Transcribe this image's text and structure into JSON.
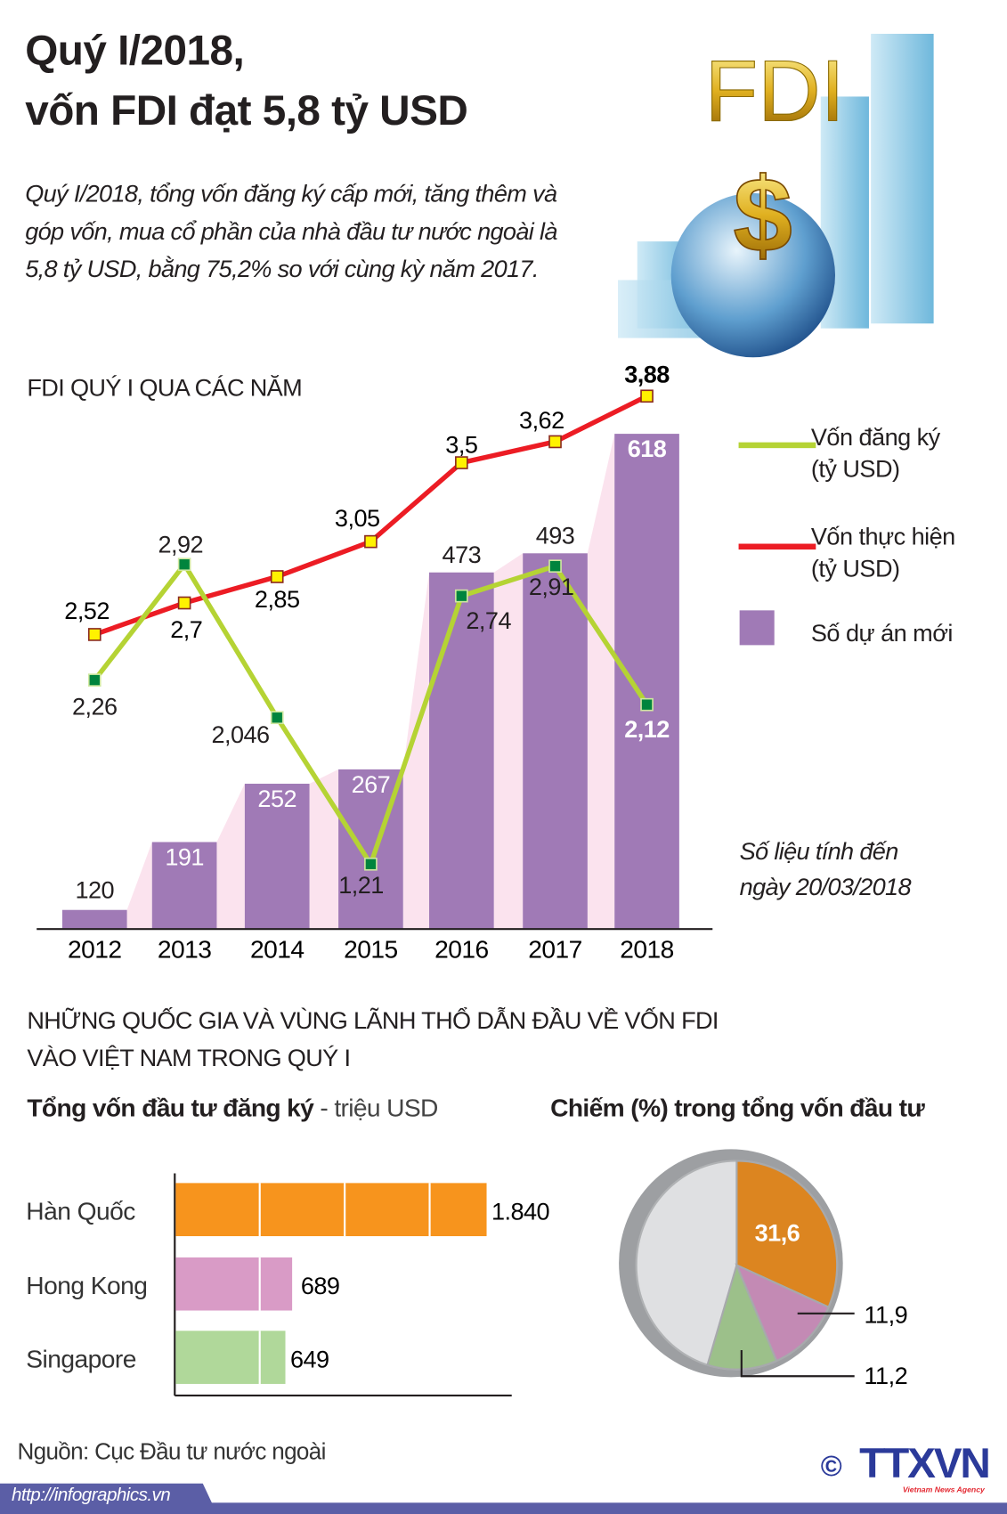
{
  "header": {
    "title_line1": "Quý I/2018,",
    "title_line2": "vốn FDI đạt 5,8 tỷ USD",
    "lead": "Quý I/2018, tổng vốn đăng ký cấp mới, tăng thêm và góp vốn, mua cổ phần của nhà đầu tư nước ngoài là 5,8 tỷ USD, bằng 75,2% so với cùng kỳ năm 2017.",
    "illustration_text": "FDI",
    "illustration_symbol": "$"
  },
  "chart_data": [
    {
      "type": "bar+line",
      "title": "FDI QUÝ I QUA CÁC NĂM",
      "categories": [
        "2012",
        "2013",
        "2014",
        "2015",
        "2016",
        "2017",
        "2018"
      ],
      "series": [
        {
          "name": "Số dự án mới",
          "kind": "bar",
          "color": "#a07ab6",
          "values": [
            120,
            191,
            252,
            267,
            473,
            493,
            618
          ],
          "labels": [
            "120",
            "191",
            "252",
            "267",
            "473",
            "493",
            "618"
          ]
        },
        {
          "name": "Vốn đăng ký (tỷ USD)",
          "kind": "line",
          "color": "#b5d334",
          "values": [
            2.26,
            2.92,
            2.046,
            1.21,
            2.74,
            2.91,
            2.12
          ],
          "labels": [
            "2,26",
            "2,92",
            "2,046",
            "1,21",
            "2,74",
            "2,91",
            "2,12"
          ]
        },
        {
          "name": "Vốn thực hiện (tỷ USD)",
          "kind": "line",
          "color": "#ec1c24",
          "values": [
            2.52,
            2.7,
            2.85,
            3.05,
            3.5,
            3.62,
            3.88
          ],
          "labels": [
            "2,52",
            "2,7",
            "2,85",
            "3,05",
            "3,5",
            "3,62",
            "3,88"
          ]
        }
      ],
      "legend": {
        "registered_line1": "Vốn đăng ký",
        "registered_line2": "(tỷ USD)",
        "implemented_line1": "Vốn thực hiện",
        "implemented_line2": "(tỷ USD)",
        "projects": "Số dự án mới",
        "placement": "right"
      },
      "note_line1": "Số liệu tính đến",
      "note_line2": "ngày 20/03/2018"
    },
    {
      "type": "bar",
      "orientation": "horizontal",
      "title": "Tổng vốn đầu tư đăng ký",
      "unit": " - triệu USD",
      "categories": [
        "Hàn Quốc",
        "Hong Kong",
        "Singapore"
      ],
      "values": [
        1840,
        689,
        649
      ],
      "labels": [
        "1.840",
        "689",
        "649"
      ],
      "colors": [
        "#f7941d",
        "#d99bc6",
        "#b0d89a"
      ]
    },
    {
      "type": "pie",
      "title": "Chiếm (%) trong tổng vốn đầu tư",
      "values": [
        31.6,
        11.9,
        11.2
      ],
      "labels": [
        "31,6",
        "11,9",
        "11,2"
      ],
      "colors": [
        "#dc8520",
        "#c38ab4",
        "#9cc08a"
      ],
      "remainder_color": "#dfe0e2"
    }
  ],
  "section2": {
    "title_line1": "NHỮNG QUỐC GIA VÀ VÙNG LÃNH THỔ DẪN ĐẦU VỀ VỐN FDI",
    "title_line2": "VÀO VIỆT NAM TRONG QUÝ I"
  },
  "footer": {
    "source": "Nguồn: Cục Đầu tư nước ngoài",
    "url": "http://infographics.vn",
    "copyright": "©",
    "logo": "TTXVN",
    "logo_sub": "Vietnam News Agency",
    "band_color": "#5b5ea6"
  }
}
